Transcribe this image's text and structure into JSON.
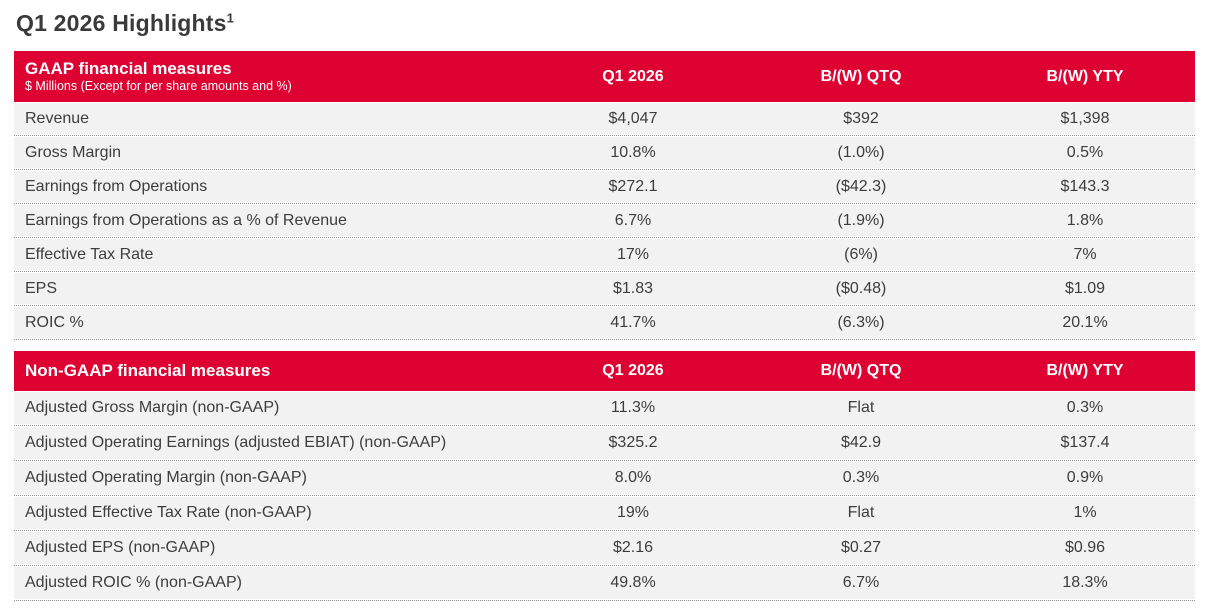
{
  "title": {
    "text": "Q1 2026 Highlights",
    "superscript": "1"
  },
  "colors": {
    "brand_red": "#DD0231",
    "row_background": "#F2F2F3",
    "body_text": "#3D3D3D",
    "header_text": "#FFFFFF",
    "row_separator": "#8C8C8C"
  },
  "tables": [
    {
      "header": {
        "title": "GAAP financial measures",
        "subtitle": "$ Millions (Except for per share amounts and %)",
        "columns": [
          "Q1 2026",
          "B/(W) QTQ",
          "B/(W) YTY"
        ]
      },
      "rows": [
        {
          "label": "Revenue",
          "values": [
            "$4,047",
            "$392",
            "$1,398"
          ]
        },
        {
          "label": "Gross Margin",
          "values": [
            "10.8%",
            "(1.0%)",
            "0.5%"
          ]
        },
        {
          "label": "Earnings from Operations",
          "values": [
            "$272.1",
            "($42.3)",
            "$143.3"
          ]
        },
        {
          "label": "Earnings from Operations as a % of Revenue",
          "values": [
            "6.7%",
            "(1.9%)",
            "1.8%"
          ]
        },
        {
          "label": "Effective Tax Rate",
          "values": [
            "17%",
            "(6%)",
            "7%"
          ]
        },
        {
          "label": "EPS",
          "values": [
            "$1.83",
            "($0.48)",
            "$1.09"
          ]
        },
        {
          "label": "ROIC %",
          "values": [
            "41.7%",
            "(6.3%)",
            "20.1%"
          ]
        }
      ]
    },
    {
      "header": {
        "title": "Non-GAAP financial measures",
        "subtitle": "",
        "columns": [
          "Q1 2026",
          "B/(W) QTQ",
          "B/(W) YTY"
        ]
      },
      "rows": [
        {
          "label": "Adjusted Gross Margin (non-GAAP)",
          "values": [
            "11.3%",
            "Flat",
            "0.3%"
          ]
        },
        {
          "label": "Adjusted Operating Earnings (adjusted EBIAT) (non-GAAP)",
          "values": [
            "$325.2",
            "$42.9",
            "$137.4"
          ]
        },
        {
          "label": "Adjusted Operating Margin (non-GAAP)",
          "values": [
            "8.0%",
            "0.3%",
            "0.9%"
          ]
        },
        {
          "label": "Adjusted Effective Tax Rate (non-GAAP)",
          "values": [
            "19%",
            "Flat",
            "1%"
          ]
        },
        {
          "label": "Adjusted EPS (non-GAAP)",
          "values": [
            "$2.16",
            "$0.27",
            "$0.96"
          ]
        },
        {
          "label": "Adjusted ROIC % (non-GAAP)",
          "values": [
            "49.8%",
            "6.7%",
            "18.3%"
          ]
        }
      ]
    }
  ]
}
